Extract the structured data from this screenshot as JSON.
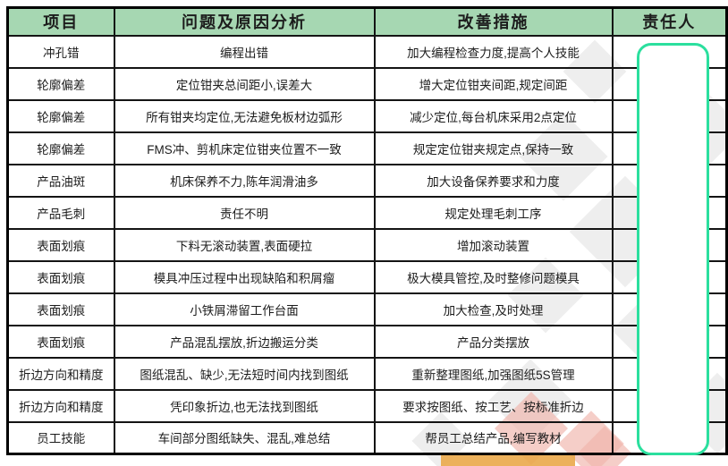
{
  "table": {
    "headers": [
      "项目",
      "问题及原因分析",
      "改善措施",
      "责任人"
    ],
    "rows": [
      {
        "item": "冲孔错",
        "problem": "编程出错",
        "measure": "加大编程检查力度,提高个人技能",
        "owner": ""
      },
      {
        "item": "轮廓偏差",
        "problem": "定位钳夹总间距小,误差大",
        "measure": "增大定位钳夹间距,规定间距",
        "owner": ""
      },
      {
        "item": "轮廓偏差",
        "problem": "所有钳夹均定位,无法避免板材边弧形",
        "measure": "减少定位,每台机床采用2点定位",
        "owner": ""
      },
      {
        "item": "轮廓偏差",
        "problem": "FMS冲、剪机床定位钳夹位置不一致",
        "measure": "规定定位钳夹规定点,保持一致",
        "owner": ""
      },
      {
        "item": "产品油斑",
        "problem": "机床保养不力,陈年润滑油多",
        "measure": "加大设备保养要求和力度",
        "owner": ""
      },
      {
        "item": "产品毛刺",
        "problem": "责任不明",
        "measure": "规定处理毛刺工序",
        "owner": ""
      },
      {
        "item": "表面划痕",
        "problem": "下料无滚动装置,表面硬拉",
        "measure": "增加滚动装置",
        "owner": ""
      },
      {
        "item": "表面划痕",
        "problem": "模具冲压过程中出现缺陷和积屑瘤",
        "measure": "极大模具管控,及时整修问题模具",
        "owner": ""
      },
      {
        "item": "表面划痕",
        "problem": "小铁屑滞留工作台面",
        "measure": "加大检查,及时处理",
        "owner": ""
      },
      {
        "item": "表面划痕",
        "problem": "产品混乱摆放,折边搬运分类",
        "measure": "产品分类摆放",
        "owner": ""
      },
      {
        "item": "折边方向和精度",
        "problem": "图纸混乱、缺少,无法短时间内找到图纸",
        "measure": "重新整理图纸,加强图纸5S管理",
        "owner": ""
      },
      {
        "item": "折边方向和精度",
        "problem": "凭印象折边,也无法找到图纸",
        "measure": "要求按图纸、按工艺、按标准折边",
        "owner": ""
      },
      {
        "item": "员工技能",
        "problem": "车间部分图纸缺失、混乱,难总结",
        "measure": "帮员工总结产品,编写教材",
        "owner": ""
      }
    ]
  },
  "colors": {
    "header-bg": "#a6d7b2",
    "grid-line": "#141414",
    "redaction-border": "#2bdf9e",
    "watermark-gray": "#d9d9d9",
    "watermark-red": "#f0b3ab",
    "watermark-orange": "#eaa94a"
  }
}
